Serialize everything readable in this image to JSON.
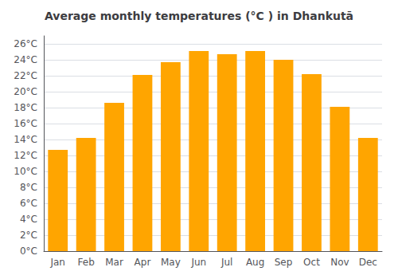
{
  "chart_data": {
    "type": "bar",
    "title": "Average monthly temperatures (°C ) in Dhankutā",
    "categories": [
      "Jan",
      "Feb",
      "Mar",
      "Apr",
      "May",
      "Jun",
      "Jul",
      "Aug",
      "Sep",
      "Oct",
      "Nov",
      "Dec"
    ],
    "values": [
      12.7,
      14.2,
      18.6,
      22.1,
      23.7,
      25.1,
      24.7,
      25.1,
      24.0,
      22.2,
      18.1,
      14.2
    ],
    "color": "#FFA500",
    "ylim": [
      0,
      27
    ],
    "yticks": [
      {
        "value": 0,
        "label": "0°C"
      },
      {
        "value": 2,
        "label": "2°C"
      },
      {
        "value": 4,
        "label": "4°C"
      },
      {
        "value": 6,
        "label": "6°C"
      },
      {
        "value": 8,
        "label": "8°C"
      },
      {
        "value": 10,
        "label": "10°C"
      },
      {
        "value": 12,
        "label": "12°C"
      },
      {
        "value": 14,
        "label": "14°C"
      },
      {
        "value": 16,
        "label": "16°C"
      },
      {
        "value": 18,
        "label": "18°C"
      },
      {
        "value": 20,
        "label": "20°C"
      },
      {
        "value": 22,
        "label": "22°C"
      },
      {
        "value": 24,
        "label": "24°C"
      },
      {
        "value": 26,
        "label": "26°C"
      }
    ],
    "grid": true
  }
}
